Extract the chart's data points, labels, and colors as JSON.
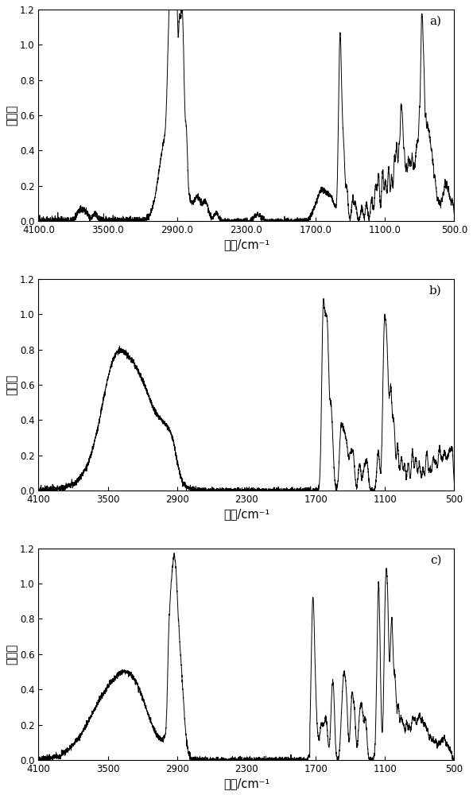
{
  "ylabel": "吸光度",
  "xlabel": "波数/cm⁻¹",
  "ylim": [
    0,
    1.2
  ],
  "yticks": [
    0,
    0.2,
    0.4,
    0.6,
    0.8,
    1.0,
    1.2
  ],
  "xticks_a": [
    4100.0,
    3500.0,
    2900.0,
    2300.0,
    1700.0,
    1100.0,
    500.0
  ],
  "xticklabels_a": [
    "4100.0",
    "3500.0",
    "2900.0",
    "2300.0",
    "1700.0",
    "1100.0",
    "500.0"
  ],
  "xticks_bc": [
    4100,
    3500,
    2900,
    2300,
    1700,
    1100,
    500
  ],
  "xticklabels_bc": [
    "4100",
    "3500",
    "2900",
    "2300",
    "1700",
    "1100",
    "500"
  ],
  "panel_labels": [
    "a)",
    "b)",
    "c)"
  ],
  "line_color": "#000000",
  "line_width": 0.7,
  "background_color": "#ffffff",
  "figsize": [
    5.95,
    10.0
  ],
  "dpi": 100
}
